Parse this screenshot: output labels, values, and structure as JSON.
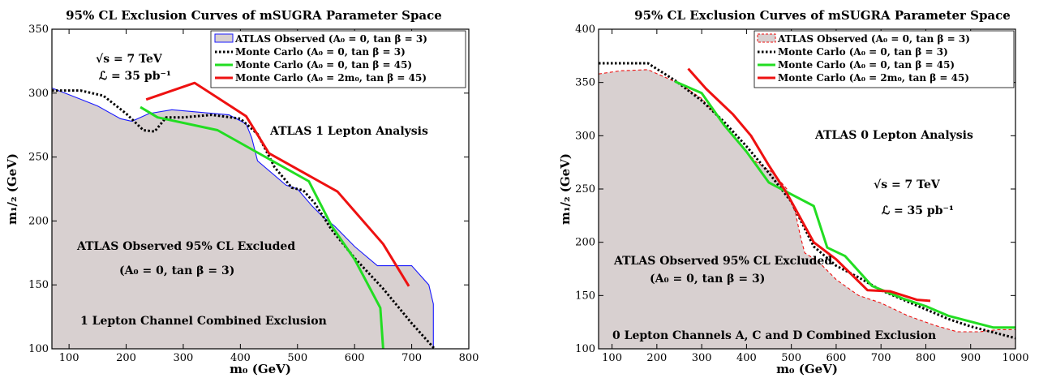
{
  "chart_data": [
    {
      "type": "line",
      "title": "95% CL Exclusion Curves of mSUGRA Parameter Space",
      "xlabel": "m₀ (GeV)",
      "ylabel": "m₁/₂ (GeV)",
      "xlim": [
        70,
        800
      ],
      "ylim": [
        100,
        350
      ],
      "xticks": [
        100,
        200,
        300,
        400,
        500,
        600,
        700,
        800
      ],
      "yticks": [
        100,
        150,
        200,
        250,
        300,
        350
      ],
      "grid": false,
      "legend_position": "top-right",
      "series": [
        {
          "name": "ATLAS Observed (A₀ = 0, tan β = 3)",
          "style": "filled-area",
          "color": "#1a1aff",
          "fill": "#d8d0d0",
          "x": [
            70,
            110,
            150,
            190,
            210,
            240,
            280,
            330,
            380,
            410,
            420,
            430,
            480,
            500,
            525,
            545,
            565,
            600,
            640,
            680,
            700,
            730,
            738,
            738
          ],
          "y": [
            304,
            297,
            290,
            280,
            278,
            284,
            287,
            285,
            283,
            276,
            265,
            247,
            228,
            225,
            212,
            203,
            196,
            180,
            165,
            165,
            165,
            150,
            135,
            100
          ]
        },
        {
          "name": "Monte Carlo (A₀ = 0, tan β = 3)",
          "style": "dotted",
          "color": "#000000",
          "x": [
            70,
            120,
            160,
            200,
            230,
            250,
            270,
            300,
            350,
            400,
            430,
            460,
            490,
            510,
            530,
            560,
            600,
            650,
            700,
            740
          ],
          "y": [
            302,
            302,
            298,
            284,
            271,
            270,
            281,
            281,
            283,
            280,
            268,
            242,
            226,
            224,
            214,
            193,
            171,
            147,
            120,
            100
          ]
        },
        {
          "name": "Monte Carlo (A₀ = 0, tan β = 45)",
          "style": "solid",
          "color": "#22dd22",
          "x": [
            225,
            255,
            360,
            520,
            560,
            600,
            645,
            650
          ],
          "y": [
            289,
            281,
            271,
            231,
            196,
            170,
            132,
            100
          ]
        },
        {
          "name": "Monte Carlo (A₀ = 2m₀, tan β = 45)",
          "style": "solid",
          "color": "#ee1111",
          "x": [
            235,
            320,
            410,
            450,
            570,
            650,
            695
          ],
          "y": [
            295,
            308,
            282,
            253,
            223,
            182,
            149
          ]
        }
      ],
      "annotations": {
        "energy_prefix": "√s = 7 TeV",
        "lumi": "ℒ = 35 pb⁻¹",
        "analysis": "ATLAS 1 Lepton Analysis",
        "excluded_line1": "ATLAS Observed 95% CL Excluded",
        "excluded_line2": "(A₀ = 0, tan β = 3)",
        "channel": "1 Lepton Channel Combined Exclusion"
      }
    },
    {
      "type": "line",
      "title": "95% CL Exclusion Curves of mSUGRA Parameter Space",
      "xlabel": "m₀ (GeV)",
      "ylabel": "m₁/₂ (GeV)",
      "xlim": [
        70,
        1000
      ],
      "ylim": [
        100,
        400
      ],
      "xticks": [
        100,
        200,
        300,
        400,
        500,
        600,
        700,
        800,
        900,
        1000
      ],
      "yticks": [
        100,
        150,
        200,
        250,
        300,
        350,
        400
      ],
      "grid": false,
      "legend_position": "top-right",
      "series": [
        {
          "name": "ATLAS Observed (A₀ = 0, tan β = 3)",
          "style": "filled-area-dashed",
          "color": "#ee1111",
          "fill": "#d8d0d0",
          "x": [
            70,
            120,
            180,
            250,
            300,
            340,
            380,
            420,
            460,
            490,
            510,
            520,
            530,
            560,
            600,
            650,
            700,
            760,
            820,
            870,
            920,
            960,
            1000
          ],
          "y": [
            358,
            361,
            362,
            349,
            335,
            316,
            295,
            276,
            265,
            250,
            226,
            206,
            190,
            182,
            165,
            150,
            143,
            131,
            122,
            116,
            116,
            118,
            118
          ]
        },
        {
          "name": "Monte Carlo (A₀ = 0, tan β = 3)",
          "style": "dotted",
          "color": "#000000",
          "x": [
            70,
            180,
            240,
            300,
            350,
            400,
            450,
            500,
            550,
            600,
            650,
            700,
            750,
            800,
            850,
            900,
            1000
          ],
          "y": [
            368,
            368,
            352,
            333,
            313,
            290,
            265,
            238,
            196,
            178,
            167,
            155,
            146,
            137,
            128,
            121,
            110
          ]
        },
        {
          "name": "Monte Carlo (A₀ = 0, tan β = 45)",
          "style": "solid",
          "color": "#22dd22",
          "x": [
            240,
            300,
            350,
            400,
            450,
            500,
            550,
            580,
            620,
            680,
            750,
            800,
            850,
            950,
            1000
          ],
          "y": [
            351,
            340,
            310,
            285,
            256,
            245,
            234,
            195,
            187,
            159,
            147,
            140,
            131,
            120,
            120
          ]
        },
        {
          "name": "Monte Carlo (A₀ = 2m₀, tan β = 45)",
          "style": "solid",
          "color": "#ee1111",
          "x": [
            270,
            310,
            370,
            410,
            450,
            490,
            550,
            600,
            670,
            720,
            780,
            810
          ],
          "y": [
            363,
            344,
            320,
            300,
            272,
            246,
            200,
            184,
            155,
            154,
            146,
            145
          ]
        }
      ],
      "annotations": {
        "energy_prefix": "√s = 7 TeV",
        "lumi": "ℒ = 35 pb⁻¹",
        "analysis": "ATLAS 0 Lepton Analysis",
        "excluded_line1": "ATLAS Observed 95% CL Excluded",
        "excluded_line2": "(A₀ = 0, tan β = 3)",
        "channel": "0 Lepton Channels A, C and D Combined Exclusion"
      }
    }
  ]
}
